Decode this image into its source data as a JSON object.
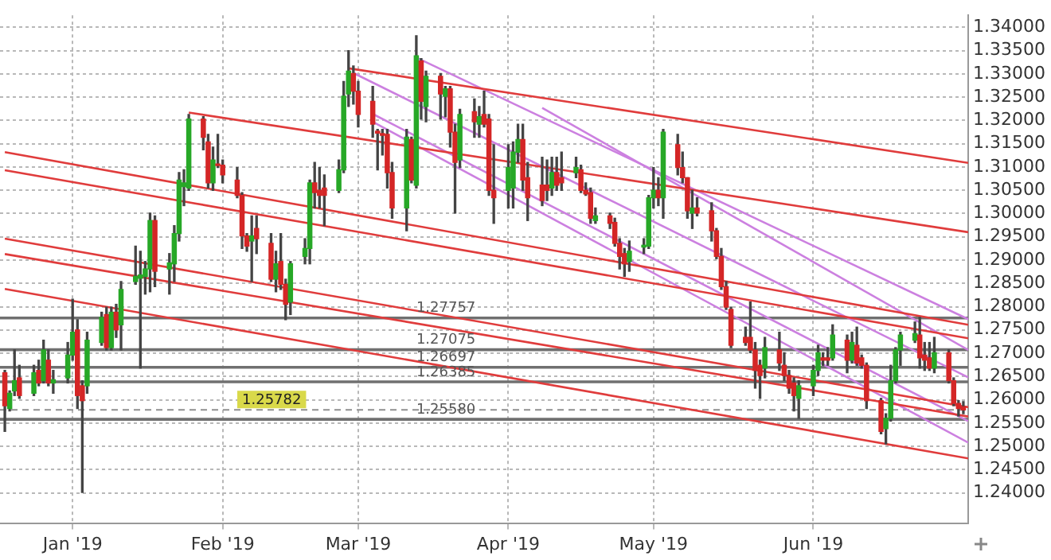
{
  "chart_data": {
    "type": "candlestick",
    "x": [
      "2018-12-18",
      "2018-12-19",
      "2018-12-20",
      "2018-12-21",
      "2018-12-24",
      "2018-12-25",
      "2018-12-26",
      "2018-12-27",
      "2018-12-28",
      "2018-12-31",
      "2019-01-01",
      "2019-01-02",
      "2019-01-03",
      "2019-01-04",
      "2019-01-07",
      "2019-01-08",
      "2019-01-09",
      "2019-01-10",
      "2019-01-11",
      "2019-01-14",
      "2019-01-15",
      "2019-01-16",
      "2019-01-17",
      "2019-01-18",
      "2019-01-21",
      "2019-01-22",
      "2019-01-23",
      "2019-01-24",
      "2019-01-25",
      "2019-01-28",
      "2019-01-29",
      "2019-01-30",
      "2019-01-31",
      "2019-02-01",
      "2019-02-04",
      "2019-02-05",
      "2019-02-06",
      "2019-02-07",
      "2019-02-08",
      "2019-02-11",
      "2019-02-12",
      "2019-02-13",
      "2019-02-14",
      "2019-02-15",
      "2019-02-18",
      "2019-02-19",
      "2019-02-20",
      "2019-02-21",
      "2019-02-22",
      "2019-02-25",
      "2019-02-26",
      "2019-02-27",
      "2019-02-28",
      "2019-03-01",
      "2019-03-04",
      "2019-03-05",
      "2019-03-06",
      "2019-03-07",
      "2019-03-08",
      "2019-03-11",
      "2019-03-12",
      "2019-03-13",
      "2019-03-14",
      "2019-03-15",
      "2019-03-18",
      "2019-03-19",
      "2019-03-20",
      "2019-03-21",
      "2019-03-22",
      "2019-03-25",
      "2019-03-26",
      "2019-03-27",
      "2019-03-28",
      "2019-03-29",
      "2019-04-01",
      "2019-04-02",
      "2019-04-03",
      "2019-04-04",
      "2019-04-05",
      "2019-04-08",
      "2019-04-09",
      "2019-04-10",
      "2019-04-11",
      "2019-04-12",
      "2019-04-15",
      "2019-04-16",
      "2019-04-17",
      "2019-04-18",
      "2019-04-19",
      "2019-04-22",
      "2019-04-23",
      "2019-04-24",
      "2019-04-25",
      "2019-04-26",
      "2019-04-29",
      "2019-04-30",
      "2019-05-01",
      "2019-05-02",
      "2019-05-03",
      "2019-05-06",
      "2019-05-07",
      "2019-05-08",
      "2019-05-09",
      "2019-05-10",
      "2019-05-13",
      "2019-05-14",
      "2019-05-15",
      "2019-05-16",
      "2019-05-17",
      "2019-05-20",
      "2019-05-21",
      "2019-05-22",
      "2019-05-23",
      "2019-05-24",
      "2019-05-27",
      "2019-05-28",
      "2019-05-29",
      "2019-05-30",
      "2019-05-31",
      "2019-06-03",
      "2019-06-04",
      "2019-06-05",
      "2019-06-06",
      "2019-06-07",
      "2019-06-10",
      "2019-06-11",
      "2019-06-12",
      "2019-06-13",
      "2019-06-14",
      "2019-06-17",
      "2019-06-18",
      "2019-06-19",
      "2019-06-20",
      "2019-06-21",
      "2019-06-24",
      "2019-06-25",
      "2019-06-26",
      "2019-06-27",
      "2019-06-28",
      "2019-07-01",
      "2019-07-02",
      "2019-07-03",
      "2019-07-04"
    ],
    "ohlc": [
      [
        1.2658,
        1.2663,
        1.2532,
        1.2587
      ],
      [
        1.2581,
        1.2619,
        1.2576,
        1.2614
      ],
      [
        1.2619,
        1.2707,
        1.2609,
        1.2641
      ],
      [
        1.2647,
        1.2674,
        1.2603,
        1.2609
      ],
      [
        1.2614,
        1.2674,
        1.2609,
        1.2658
      ],
      [
        1.2663,
        1.2685,
        1.263,
        1.2636
      ],
      [
        1.2641,
        1.2728,
        1.2636,
        1.2707
      ],
      [
        1.2685,
        1.2707,
        1.263,
        1.2636
      ],
      [
        1.2636,
        1.2663,
        1.2614,
        1.2643
      ],
      [
        1.2647,
        1.2723,
        1.2636,
        1.2696
      ],
      [
        1.2696,
        1.2816,
        1.2685,
        1.2745
      ],
      [
        1.275,
        1.2772,
        1.2581,
        1.2609
      ],
      [
        1.263,
        1.2641,
        1.2401,
        1.2598
      ],
      [
        1.263,
        1.2745,
        1.2614,
        1.2728
      ],
      [
        1.2723,
        1.2788,
        1.2717,
        1.2777
      ],
      [
        1.2783,
        1.2799,
        1.2707,
        1.2712
      ],
      [
        1.2712,
        1.2799,
        1.2707,
        1.2788
      ],
      [
        1.2788,
        1.2805,
        1.2734,
        1.275
      ],
      [
        1.2761,
        1.2854,
        1.2707,
        1.2837
      ],
      [
        1.2854,
        1.293,
        1.2848,
        1.2865
      ],
      [
        1.2861,
        1.2919,
        1.2668,
        1.2868
      ],
      [
        1.2865,
        1.2897,
        1.2827,
        1.2881
      ],
      [
        1.2881,
        1.3001,
        1.2832,
        1.2985
      ],
      [
        1.2985,
        1.2995,
        1.2843,
        1.2876
      ],
      [
        1.2881,
        1.2914,
        1.2827,
        1.2894
      ],
      [
        1.2892,
        1.2974,
        1.2854,
        1.2957
      ],
      [
        1.2957,
        1.3088,
        1.2941,
        1.3072
      ],
      [
        1.3058,
        1.3094,
        1.3017,
        1.3066
      ],
      [
        1.3055,
        1.3213,
        1.305,
        1.3203
      ],
      [
        1.3203,
        1.3208,
        1.3137,
        1.3164
      ],
      [
        1.3154,
        1.317,
        1.3055,
        1.3066
      ],
      [
        1.3066,
        1.3143,
        1.305,
        1.3115
      ],
      [
        1.3106,
        1.317,
        1.3099,
        1.3103
      ],
      [
        1.3104,
        1.3115,
        1.3066,
        1.3083
      ],
      [
        1.3072,
        1.3099,
        1.3034,
        1.3039
      ],
      [
        1.3039,
        1.3045,
        1.2925,
        1.2952
      ],
      [
        1.2952,
        1.2957,
        1.2919,
        1.293
      ],
      [
        1.2941,
        1.2995,
        1.2854,
        1.2952
      ],
      [
        1.2968,
        1.2995,
        1.2914,
        1.2946
      ],
      [
        1.2936,
        1.2957,
        1.2854,
        1.2859
      ],
      [
        1.2859,
        1.2919,
        1.2832,
        1.2892
      ],
      [
        1.2897,
        1.2957,
        1.2837,
        1.2848
      ],
      [
        1.2848,
        1.2859,
        1.2772,
        1.2805
      ],
      [
        1.281,
        1.2897,
        1.2783,
        1.2892
      ],
      [
        1.2908,
        1.2946,
        1.2892,
        1.2925
      ],
      [
        1.2925,
        1.3072,
        1.2892,
        1.3066
      ],
      [
        1.3066,
        1.311,
        1.3012,
        1.3045
      ],
      [
        1.305,
        1.3099,
        1.3012,
        1.3039
      ],
      [
        1.3055,
        1.3083,
        1.2974,
        1.3039
      ],
      [
        1.305,
        1.3115,
        1.3045,
        1.3094
      ],
      [
        1.3094,
        1.3284,
        1.3088,
        1.3252
      ],
      [
        1.3257,
        1.335,
        1.323,
        1.3306
      ],
      [
        1.3301,
        1.3317,
        1.3235,
        1.3263
      ],
      [
        1.3263,
        1.3284,
        1.3186,
        1.3213
      ],
      [
        1.3241,
        1.3273,
        1.3164,
        1.3192
      ],
      [
        1.3177,
        1.3181,
        1.3094,
        1.3173
      ],
      [
        1.3172,
        1.3181,
        1.3126,
        1.3168
      ],
      [
        1.317,
        1.3181,
        1.3055,
        1.3088
      ],
      [
        1.3088,
        1.311,
        1.299,
        1.3012
      ],
      [
        1.3012,
        1.3181,
        1.2963,
        1.3164
      ],
      [
        1.3159,
        1.3164,
        1.3066,
        1.3072
      ],
      [
        1.3061,
        1.3382,
        1.3055,
        1.3339
      ],
      [
        1.3328,
        1.3333,
        1.3203,
        1.3241
      ],
      [
        1.323,
        1.3306,
        1.3197,
        1.3295
      ],
      [
        1.3295,
        1.3301,
        1.3203,
        1.3257
      ],
      [
        1.3252,
        1.3273,
        1.3208,
        1.3268
      ],
      [
        1.3268,
        1.3273,
        1.3143,
        1.3175
      ],
      [
        1.3175,
        1.3192,
        1.3001,
        1.311
      ],
      [
        1.3115,
        1.3224,
        1.3099,
        1.3213
      ],
      [
        1.3219,
        1.3246,
        1.3164,
        1.3197
      ],
      [
        1.3192,
        1.323,
        1.3164,
        1.3208
      ],
      [
        1.3213,
        1.3263,
        1.3186,
        1.3192
      ],
      [
        1.3203,
        1.3213,
        1.3039,
        1.305
      ],
      [
        1.305,
        1.3148,
        1.2979,
        1.3034
      ],
      [
        1.305,
        1.3148,
        1.3012,
        1.3099
      ],
      [
        1.3055,
        1.3154,
        1.3012,
        1.3132
      ],
      [
        1.3132,
        1.3192,
        1.311,
        1.3159
      ],
      [
        1.3159,
        1.3192,
        1.305,
        1.3072
      ],
      [
        1.3077,
        1.311,
        1.2985,
        1.3034
      ],
      [
        1.3061,
        1.3121,
        1.3017,
        1.3028
      ],
      [
        1.3061,
        1.3115,
        1.3028,
        1.305
      ],
      [
        1.3055,
        1.3121,
        1.3039,
        1.3088
      ],
      [
        1.3088,
        1.3121,
        1.305,
        1.3061
      ],
      [
        1.3077,
        1.3132,
        1.305,
        1.3066
      ],
      [
        1.3088,
        1.3121,
        1.3077,
        1.3099
      ],
      [
        1.3094,
        1.3104,
        1.3045,
        1.305
      ],
      [
        1.305,
        1.3066,
        1.3039,
        1.3042
      ],
      [
        1.3045,
        1.3055,
        1.2979,
        1.299
      ],
      [
        1.2985,
        1.3012,
        1.2979,
        1.2995
      ],
      [
        1.2995,
        1.3001,
        1.2968,
        1.2979
      ],
      [
        1.2981,
        1.299,
        1.293,
        1.2936
      ],
      [
        1.2936,
        1.2946,
        1.2881,
        1.2908
      ],
      [
        1.2914,
        1.2925,
        1.2865,
        1.2892
      ],
      [
        1.2897,
        1.2941,
        1.2876,
        1.2919
      ],
      [
        1.2928,
        1.2946,
        1.2914,
        1.2932
      ],
      [
        1.293,
        1.3039,
        1.2925,
        1.3034
      ],
      [
        1.3034,
        1.3099,
        1.3012,
        1.305
      ],
      [
        1.305,
        1.3077,
        1.3017,
        1.3034
      ],
      [
        1.3034,
        1.3181,
        1.299,
        1.3175
      ],
      [
        1.3148,
        1.317,
        1.3083,
        1.3099
      ],
      [
        1.3099,
        1.3132,
        1.3066,
        1.3077
      ],
      [
        1.3077,
        1.3077,
        1.299,
        1.3006
      ],
      [
        1.3001,
        1.305,
        1.2968,
        1.3012
      ],
      [
        1.3012,
        1.3034,
        1.2995,
        1.3001
      ],
      [
        1.3006,
        1.3023,
        1.2941,
        1.2963
      ],
      [
        1.2963,
        1.2968,
        1.2903,
        1.2908
      ],
      [
        1.2908,
        1.2925,
        1.2837,
        1.2843
      ],
      [
        1.2843,
        1.2854,
        1.2794,
        1.2799
      ],
      [
        1.2794,
        1.2799,
        1.2712,
        1.2717
      ],
      [
        1.2734,
        1.2756,
        1.2717,
        1.2723
      ],
      [
        1.2734,
        1.281,
        1.2701,
        1.2707
      ],
      [
        1.2707,
        1.2723,
        1.2625,
        1.2663
      ],
      [
        1.2674,
        1.2685,
        1.2603,
        1.2652
      ],
      [
        1.2668,
        1.2734,
        1.2647,
        1.2712
      ],
      [
        1.2707,
        1.2745,
        1.2663,
        1.2679
      ],
      [
        1.2674,
        1.2701,
        1.2641,
        1.2652
      ],
      [
        1.2652,
        1.2663,
        1.2614,
        1.2625
      ],
      [
        1.2636,
        1.2647,
        1.2576,
        1.2609
      ],
      [
        1.2603,
        1.2641,
        1.256,
        1.263
      ],
      [
        1.263,
        1.2674,
        1.2609,
        1.2663
      ],
      [
        1.2663,
        1.2717,
        1.2652,
        1.2701
      ],
      [
        1.269,
        1.2701,
        1.2674,
        1.2685
      ],
      [
        1.269,
        1.2712,
        1.2674,
        1.2685
      ],
      [
        1.269,
        1.2761,
        1.2685,
        1.2739
      ],
      [
        1.2728,
        1.2739,
        1.2658,
        1.2685
      ],
      [
        1.2685,
        1.2745,
        1.2679,
        1.2723
      ],
      [
        1.2717,
        1.2756,
        1.2674,
        1.2679
      ],
      [
        1.269,
        1.2696,
        1.2668,
        1.2674
      ],
      [
        1.2674,
        1.2679,
        1.2581,
        1.2598
      ],
      [
        1.2598,
        1.2603,
        1.2527,
        1.2532
      ],
      [
        1.2538,
        1.257,
        1.2505,
        1.256
      ],
      [
        1.256,
        1.2674,
        1.2554,
        1.2641
      ],
      [
        1.2641,
        1.2712,
        1.2636,
        1.2707
      ],
      [
        1.2707,
        1.2745,
        1.2674,
        1.2739
      ],
      [
        1.2728,
        1.2767,
        1.2723,
        1.2742
      ],
      [
        1.2739,
        1.2777,
        1.2668,
        1.269
      ],
      [
        1.2696,
        1.2723,
        1.2663,
        1.2685
      ],
      [
        1.269,
        1.2723,
        1.2663,
        1.2668
      ],
      [
        1.2668,
        1.2734,
        1.2658,
        1.2701
      ],
      [
        1.2701,
        1.2707,
        1.2636,
        1.2641
      ],
      [
        1.2641,
        1.2647,
        1.2587,
        1.2592
      ],
      [
        1.2592,
        1.2598,
        1.2565,
        1.2581
      ],
      [
        1.2585,
        1.2596,
        1.257,
        1.2578
      ]
    ],
    "series": [
      {
        "type": "line",
        "color": "#e03c3c",
        "x": [
          "2019-02-27",
          "2019-07-05"
        ],
        "values": [
          1.3312,
          1.3109
        ]
      },
      {
        "type": "line",
        "color": "#e03c3c",
        "x": [
          "2019-01-25",
          "2019-07-05"
        ],
        "values": [
          1.3217,
          1.296
        ]
      },
      {
        "type": "line",
        "color": "#e03c3c",
        "x": [
          "2018-12-18",
          "2019-07-05"
        ],
        "values": [
          1.3132,
          1.2761
        ]
      },
      {
        "type": "line",
        "color": "#e03c3c",
        "x": [
          "2018-12-18",
          "2019-07-05"
        ],
        "values": [
          1.3093,
          1.2732
        ]
      },
      {
        "type": "line",
        "color": "#e03c3c",
        "x": [
          "2018-12-18",
          "2019-07-05"
        ],
        "values": [
          1.2946,
          1.2584
        ]
      },
      {
        "type": "line",
        "color": "#e03c3c",
        "x": [
          "2018-12-18",
          "2019-07-05"
        ],
        "values": [
          1.2913,
          1.2564
        ]
      },
      {
        "type": "line",
        "color": "#e03c3c",
        "x": [
          "2018-12-18",
          "2019-07-05"
        ],
        "values": [
          1.2838,
          1.2474
        ]
      },
      {
        "type": "line",
        "color": "#cc80e0",
        "x": [
          "2019-03-13",
          "2019-07-05"
        ],
        "values": [
          1.3335,
          1.2773
        ]
      },
      {
        "type": "line",
        "color": "#cc80e0",
        "x": [
          "2019-02-28",
          "2019-07-05"
        ],
        "values": [
          1.3302,
          1.2648
        ]
      },
      {
        "type": "line",
        "color": "#cc80e0",
        "x": [
          "2019-03-04",
          "2019-07-05"
        ],
        "values": [
          1.3214,
          1.2554
        ]
      },
      {
        "type": "line",
        "color": "#cc80e0",
        "x": [
          "2019-03-04",
          "2019-07-05"
        ],
        "values": [
          1.3197,
          1.2508
        ]
      },
      {
        "type": "line",
        "color": "#cc80e0",
        "x": [
          "2019-04-08",
          "2019-07-05"
        ],
        "values": [
          1.3227,
          1.2707
        ]
      }
    ],
    "ref_lines": [
      {
        "axis": "y",
        "value": 1.27757,
        "label": "1.27757",
        "color": "#707070"
      },
      {
        "axis": "y",
        "value": 1.27075,
        "label": "1.27075",
        "color": "#707070"
      },
      {
        "axis": "y",
        "value": 1.26697,
        "label": "1.26697",
        "color": "#707070"
      },
      {
        "axis": "y",
        "value": 1.26385,
        "label": "1.26385",
        "color": "#707070"
      },
      {
        "axis": "y",
        "value": 1.2558,
        "label": "1.25580",
        "color": "#707070"
      },
      {
        "axis": "y",
        "value": 1.25782,
        "label": "1.25782",
        "color": "#909090",
        "line_style": "dashed"
      }
    ],
    "xlim": [
      "2018-12-17",
      "2019-07-05"
    ],
    "xticks": [
      {
        "value": "2019-01-01",
        "label": "Jan '19"
      },
      {
        "value": "2019-02-01",
        "label": "Feb '19"
      },
      {
        "value": "2019-03-01",
        "label": "Mar '19"
      },
      {
        "value": "2019-04-01",
        "label": "Apr '19"
      },
      {
        "value": "2019-05-01",
        "label": "May '19"
      },
      {
        "value": "2019-06-03",
        "label": "Jun '19"
      }
    ],
    "ylim": [
      1.2335,
      1.3426
    ],
    "yticks": [
      {
        "value": 1.24,
        "label": "1.24000"
      },
      {
        "value": 1.245,
        "label": "1.24500"
      },
      {
        "value": 1.25,
        "label": "1.25000"
      },
      {
        "value": 1.255,
        "label": "1.25500"
      },
      {
        "value": 1.26,
        "label": "1.26000"
      },
      {
        "value": 1.265,
        "label": "1.26500"
      },
      {
        "value": 1.27,
        "label": "1.27000"
      },
      {
        "value": 1.275,
        "label": "1.27500"
      },
      {
        "value": 1.28,
        "label": "1.28000"
      },
      {
        "value": 1.285,
        "label": "1.28500"
      },
      {
        "value": 1.29,
        "label": "1.29000"
      },
      {
        "value": 1.295,
        "label": "1.29500"
      },
      {
        "value": 1.3,
        "label": "1.30000"
      },
      {
        "value": 1.305,
        "label": "1.30500"
      },
      {
        "value": 1.31,
        "label": "1.31000"
      },
      {
        "value": 1.315,
        "label": "1.31500"
      },
      {
        "value": 1.32,
        "label": "1.32000"
      },
      {
        "value": 1.325,
        "label": "1.32500"
      },
      {
        "value": 1.33,
        "label": "1.33000"
      },
      {
        "value": 1.335,
        "label": "1.33500"
      },
      {
        "value": 1.34,
        "label": "1.34000"
      }
    ],
    "grid": true
  }
}
